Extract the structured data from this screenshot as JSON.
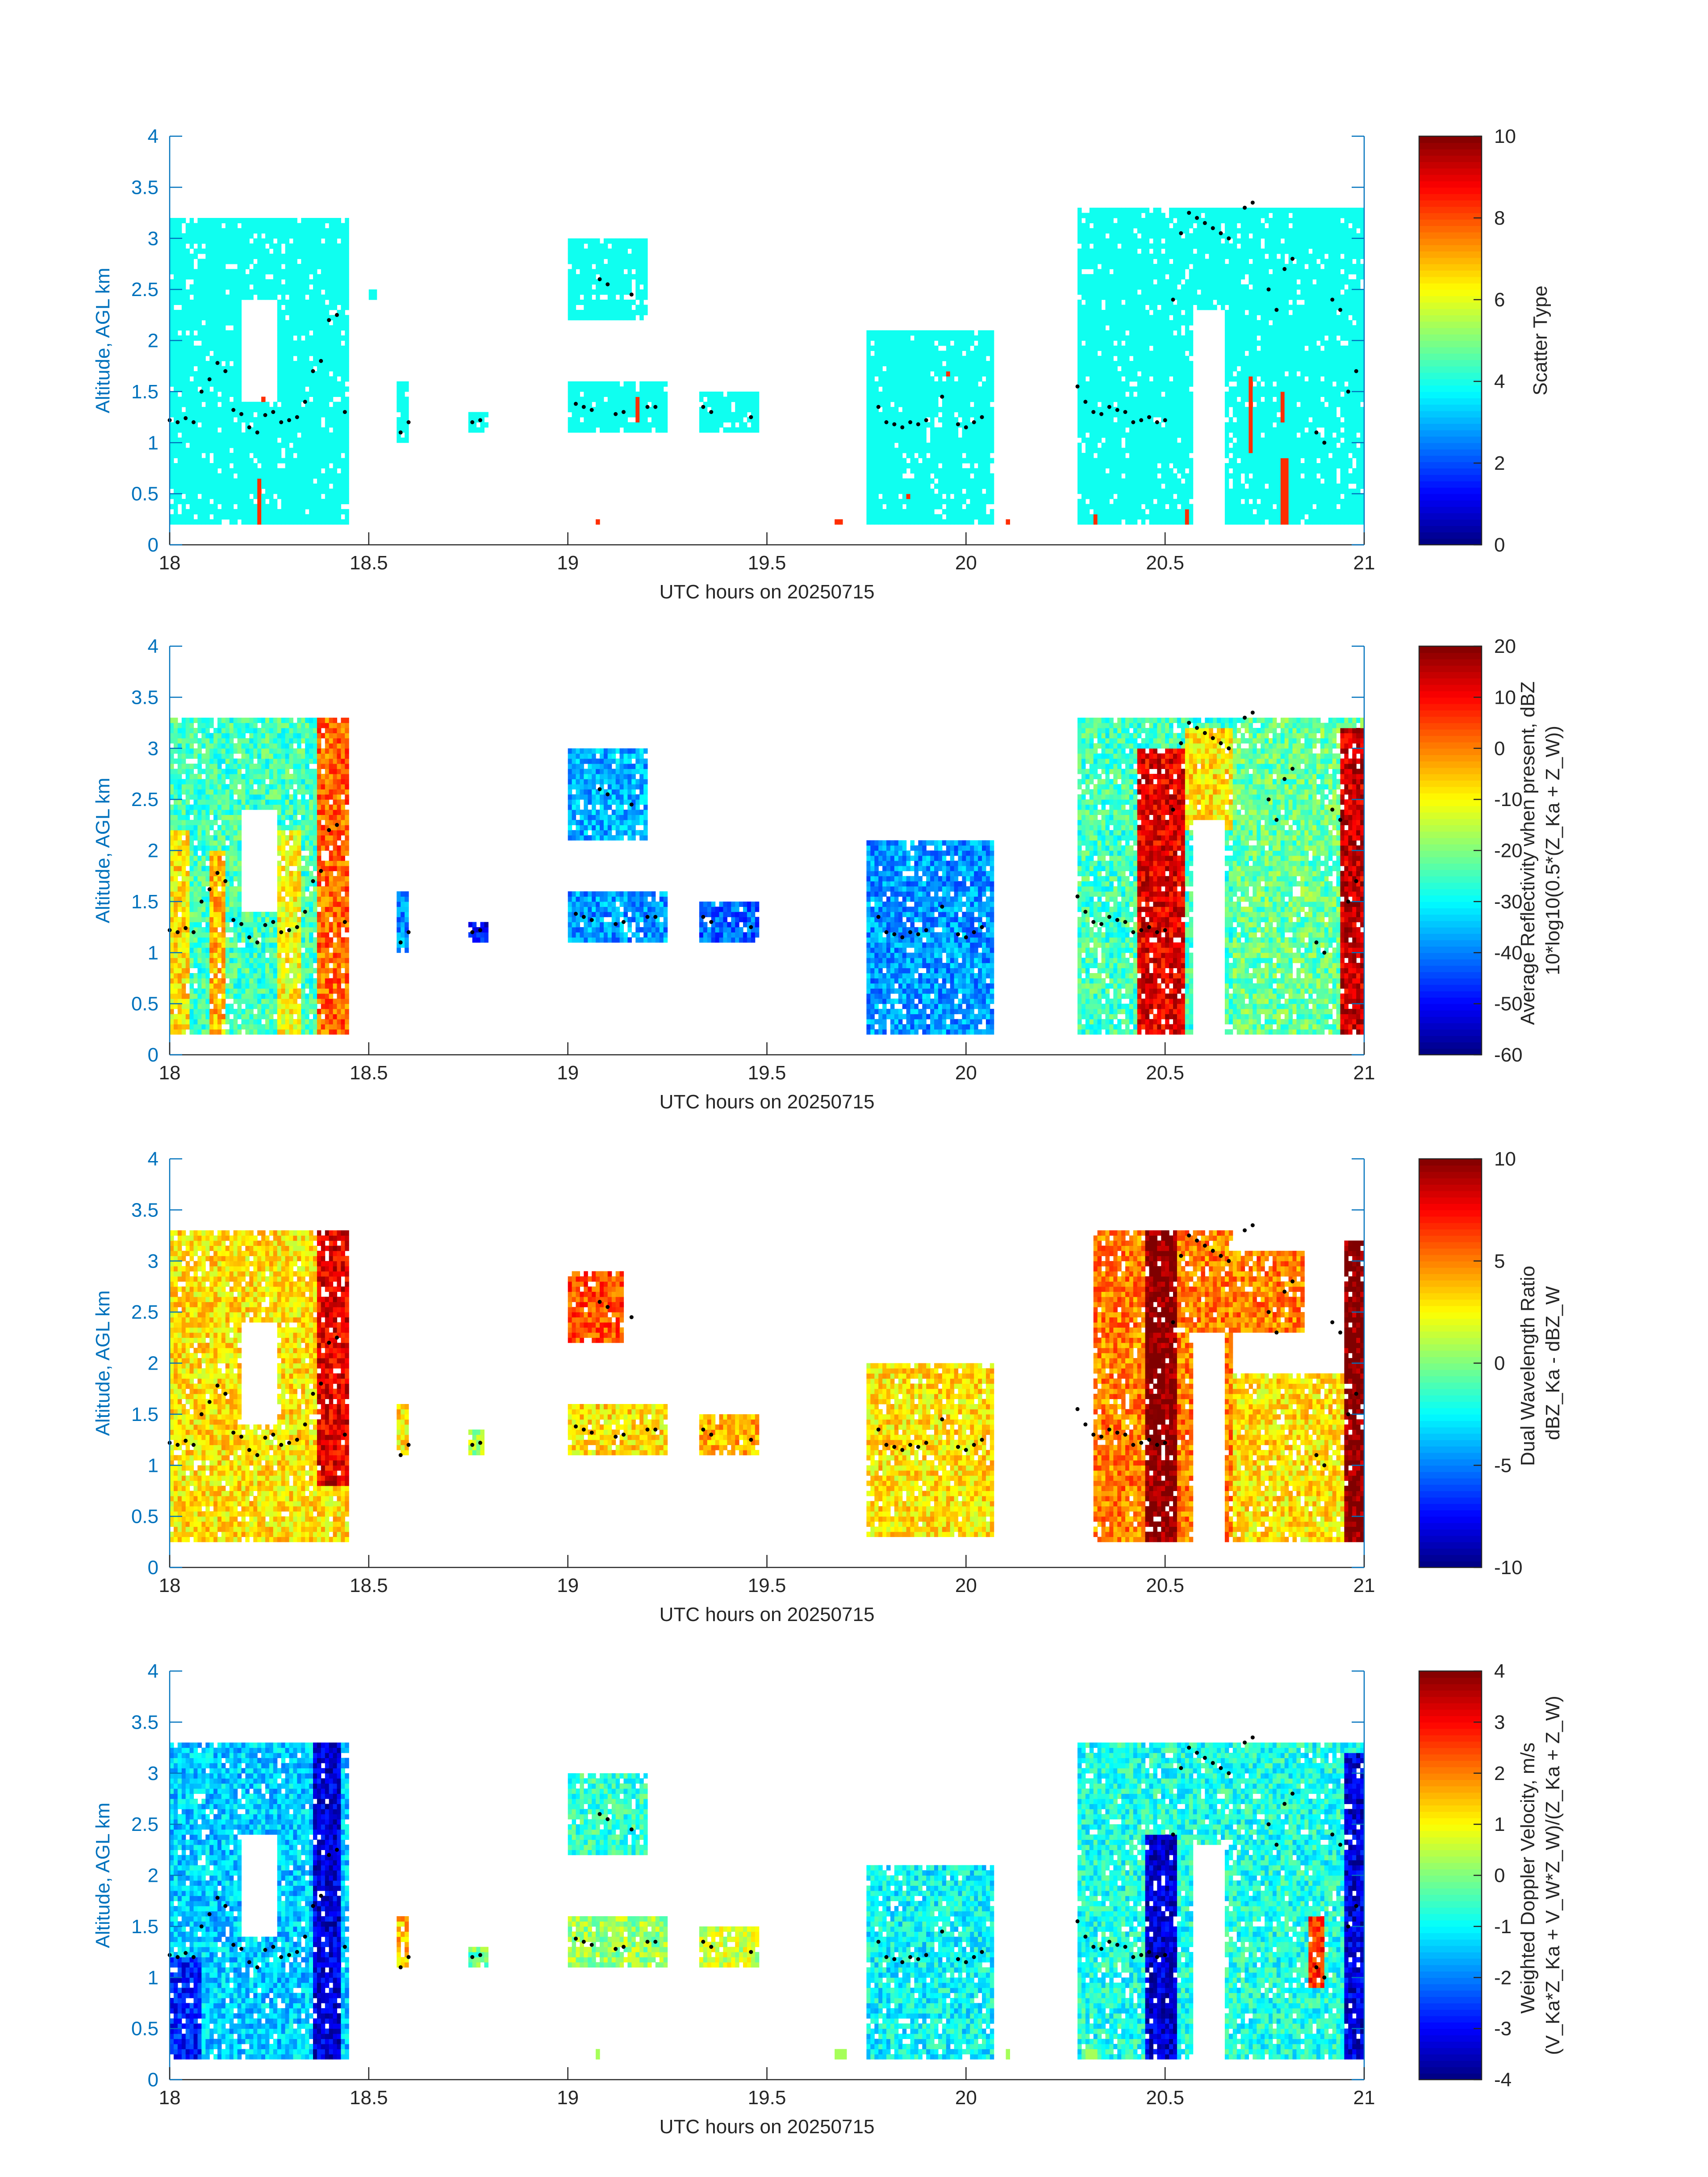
{
  "chart_data": [
    {
      "type": "heatmap",
      "xlabel": "UTC hours on 20250715",
      "ylabel": "Altitude, AGL km",
      "xlim": [
        18,
        21
      ],
      "ylim": [
        0,
        4
      ],
      "xticks": [
        "18",
        "18.5",
        "19",
        "19.5",
        "20",
        "20.5",
        "21"
      ],
      "yticks": [
        "0",
        "0.5",
        "1",
        "1.5",
        "2",
        "2.5",
        "3",
        "3.5",
        "4"
      ],
      "colorbar": {
        "label_lines": [
          "Scatter Type"
        ],
        "ticks": [
          "0",
          "2",
          "4",
          "6",
          "8",
          "10"
        ],
        "range": [
          0,
          10
        ]
      },
      "colormap": "jet",
      "default_value": 3.9,
      "echoes": [
        {
          "x": [
            18.0,
            18.45
          ],
          "y": [
            0.2,
            3.2
          ],
          "v": 3.9
        },
        {
          "x": [
            18.5,
            18.52
          ],
          "y": [
            2.4,
            2.5
          ],
          "v": 3.9
        },
        {
          "x": [
            18.57,
            18.6
          ],
          "y": [
            1.0,
            1.6
          ],
          "v": 3.9
        },
        {
          "x": [
            18.75,
            18.8
          ],
          "y": [
            1.1,
            1.3
          ],
          "v": 3.9
        },
        {
          "x": [
            19.0,
            19.2
          ],
          "y": [
            2.2,
            3.0
          ],
          "v": 3.9
        },
        {
          "x": [
            19.0,
            19.25
          ],
          "y": [
            1.1,
            1.6
          ],
          "v": 3.9
        },
        {
          "x": [
            19.33,
            19.48
          ],
          "y": [
            1.1,
            1.5
          ],
          "v": 3.9
        },
        {
          "x": [
            19.75,
            20.07
          ],
          "y": [
            0.2,
            2.1
          ],
          "v": 3.9
        },
        {
          "x": [
            20.28,
            20.67
          ],
          "y": [
            0.2,
            3.3
          ],
          "v": 3.9
        },
        {
          "x": [
            20.67,
            21.0
          ],
          "y": [
            0.2,
            3.3
          ],
          "v": 3.9
        }
      ],
      "specials": [
        {
          "x": [
            18.22,
            18.235
          ],
          "y": [
            0.2,
            0.65
          ],
          "v": 8.3
        },
        {
          "x": [
            18.23,
            18.245
          ],
          "y": [
            1.4,
            1.45
          ],
          "v": 8.3
        },
        {
          "x": [
            19.07,
            19.085
          ],
          "y": [
            0.2,
            0.25
          ],
          "v": 8.3
        },
        {
          "x": [
            19.17,
            19.185
          ],
          "y": [
            1.2,
            1.45
          ],
          "v": 8.3
        },
        {
          "x": [
            19.67,
            19.69
          ],
          "y": [
            0.2,
            0.27
          ],
          "v": 8.3
        },
        {
          "x": [
            19.85,
            19.86
          ],
          "y": [
            0.45,
            0.52
          ],
          "v": 8.3
        },
        {
          "x": [
            19.95,
            19.96
          ],
          "y": [
            1.65,
            1.72
          ],
          "v": 8.3
        },
        {
          "x": [
            20.1,
            20.115
          ],
          "y": [
            0.2,
            0.25
          ],
          "v": 8.3
        },
        {
          "x": [
            20.32,
            20.335
          ],
          "y": [
            0.2,
            0.3
          ],
          "v": 8.3
        },
        {
          "x": [
            20.55,
            20.565
          ],
          "y": [
            0.2,
            0.35
          ],
          "v": 8.3
        },
        {
          "x": [
            20.71,
            20.725
          ],
          "y": [
            0.9,
            1.65
          ],
          "v": 8.3
        },
        {
          "x": [
            20.795,
            20.81
          ],
          "y": [
            0.2,
            0.85
          ],
          "v": 8.3
        },
        {
          "x": [
            20.79,
            20.805
          ],
          "y": [
            1.2,
            1.5
          ],
          "v": 8.3
        }
      ],
      "holes": [
        {
          "x": [
            18.18,
            18.27
          ],
          "y": [
            1.4,
            2.4
          ]
        },
        {
          "x": [
            20.57,
            20.65
          ],
          "y": [
            0.2,
            2.3
          ]
        }
      ]
    },
    {
      "type": "heatmap",
      "xlabel": "UTC hours on 20250715",
      "ylabel": "Altitude, AGL km",
      "xlim": [
        18,
        21
      ],
      "ylim": [
        0,
        4
      ],
      "xticks": [
        "18",
        "18.5",
        "19",
        "19.5",
        "20",
        "20.5",
        "21"
      ],
      "yticks": [
        "0",
        "0.5",
        "1",
        "1.5",
        "2",
        "2.5",
        "3",
        "3.5",
        "4"
      ],
      "colorbar": {
        "label_lines": [
          "Average Reflectivity when present, dBZ",
          "10*log10(0.5*(Z_Ka + Z_W))"
        ],
        "ticks": [
          "-60",
          "-50",
          "-40",
          "-30",
          "-20",
          "-10",
          "0",
          "10",
          "20"
        ],
        "range": [
          -60,
          20
        ]
      },
      "colormap": "jet",
      "default_value": -35,
      "echoes": [
        {
          "x": [
            18.0,
            18.45
          ],
          "y": [
            0.2,
            3.3
          ],
          "v": -25
        },
        {
          "x": [
            18.37,
            18.45
          ],
          "y": [
            0.2,
            3.3
          ],
          "v": 2
        },
        {
          "x": [
            18.0,
            18.05
          ],
          "y": [
            0.2,
            2.2
          ],
          "v": -8
        },
        {
          "x": [
            18.1,
            18.14
          ],
          "y": [
            0.2,
            2.0
          ],
          "v": -5
        },
        {
          "x": [
            18.27,
            18.33
          ],
          "y": [
            0.2,
            2.2
          ],
          "v": -10
        },
        {
          "x": [
            18.57,
            18.6
          ],
          "y": [
            1.0,
            1.6
          ],
          "v": -38
        },
        {
          "x": [
            18.75,
            18.8
          ],
          "y": [
            1.1,
            1.3
          ],
          "v": -50
        },
        {
          "x": [
            19.0,
            19.2
          ],
          "y": [
            2.1,
            3.0
          ],
          "v": -36
        },
        {
          "x": [
            19.0,
            19.25
          ],
          "y": [
            1.1,
            1.6
          ],
          "v": -38
        },
        {
          "x": [
            19.33,
            19.48
          ],
          "y": [
            1.1,
            1.5
          ],
          "v": -42
        },
        {
          "x": [
            19.75,
            20.07
          ],
          "y": [
            0.2,
            2.1
          ],
          "v": -38
        },
        {
          "x": [
            20.28,
            20.67
          ],
          "y": [
            0.2,
            3.3
          ],
          "v": -25
        },
        {
          "x": [
            20.43,
            20.55
          ],
          "y": [
            0.2,
            3.0
          ],
          "v": 12
        },
        {
          "x": [
            20.55,
            20.85
          ],
          "y": [
            2.2,
            3.2
          ],
          "v": -8
        },
        {
          "x": [
            20.67,
            21.0
          ],
          "y": [
            0.2,
            3.3
          ],
          "v": -22
        },
        {
          "x": [
            20.94,
            21.0
          ],
          "y": [
            0.2,
            3.2
          ],
          "v": 14
        }
      ],
      "specials": [],
      "holes": [
        {
          "x": [
            18.18,
            18.27
          ],
          "y": [
            1.4,
            2.4
          ]
        },
        {
          "x": [
            20.57,
            20.65
          ],
          "y": [
            0.2,
            2.3
          ]
        }
      ]
    },
    {
      "type": "heatmap",
      "xlabel": "UTC hours on 20250715",
      "ylabel": "Altitude, AGL km",
      "xlim": [
        18,
        21
      ],
      "ylim": [
        0,
        4
      ],
      "xticks": [
        "18",
        "18.5",
        "19",
        "19.5",
        "20",
        "20.5",
        "21"
      ],
      "yticks": [
        "0",
        "0.5",
        "1",
        "1.5",
        "2",
        "2.5",
        "3",
        "3.5",
        "4"
      ],
      "colorbar": {
        "label_lines": [
          "Dual Wavelength Ratio",
          "dBZ_Ka - dBZ_W"
        ],
        "ticks": [
          "-10",
          "-5",
          "0",
          "5",
          "10"
        ],
        "range": [
          -10,
          10
        ]
      },
      "colormap": "jet",
      "default_value": 3,
      "echoes": [
        {
          "x": [
            18.0,
            18.45
          ],
          "y": [
            0.25,
            3.3
          ],
          "v": 3
        },
        {
          "x": [
            18.37,
            18.45
          ],
          "y": [
            0.8,
            3.3
          ],
          "v": 8
        },
        {
          "x": [
            18.57,
            18.6
          ],
          "y": [
            1.1,
            1.6
          ],
          "v": 3
        },
        {
          "x": [
            18.75,
            18.79
          ],
          "y": [
            1.1,
            1.35
          ],
          "v": 1
        },
        {
          "x": [
            19.0,
            19.14
          ],
          "y": [
            2.2,
            2.9
          ],
          "v": 6
        },
        {
          "x": [
            19.0,
            19.25
          ],
          "y": [
            1.1,
            1.6
          ],
          "v": 3
        },
        {
          "x": [
            19.33,
            19.48
          ],
          "y": [
            1.1,
            1.5
          ],
          "v": 4
        },
        {
          "x": [
            19.75,
            20.07
          ],
          "y": [
            0.3,
            2.0
          ],
          "v": 3
        },
        {
          "x": [
            20.32,
            20.67
          ],
          "y": [
            0.25,
            3.3
          ],
          "v": 5
        },
        {
          "x": [
            20.45,
            20.53
          ],
          "y": [
            0.25,
            3.3
          ],
          "v": 10
        },
        {
          "x": [
            20.6,
            20.85
          ],
          "y": [
            2.3,
            3.1
          ],
          "v": 5
        },
        {
          "x": [
            20.67,
            20.95
          ],
          "y": [
            0.25,
            1.9
          ],
          "v": 3
        },
        {
          "x": [
            20.95,
            21.0
          ],
          "y": [
            0.25,
            3.2
          ],
          "v": 10
        }
      ],
      "specials": [],
      "holes": [
        {
          "x": [
            18.18,
            18.27
          ],
          "y": [
            1.4,
            2.4
          ]
        },
        {
          "x": [
            20.57,
            20.65
          ],
          "y": [
            0.25,
            2.3
          ]
        }
      ]
    },
    {
      "type": "heatmap",
      "xlabel": "UTC hours on 20250715",
      "ylabel": "Altitude, AGL km",
      "xlim": [
        18,
        21
      ],
      "ylim": [
        0,
        4
      ],
      "xticks": [
        "18",
        "18.5",
        "19",
        "19.5",
        "20",
        "20.5",
        "21"
      ],
      "yticks": [
        "0",
        "0.5",
        "1",
        "1.5",
        "2",
        "2.5",
        "3",
        "3.5",
        "4"
      ],
      "colorbar": {
        "label_lines": [
          "Weighted Doppler Velocity, m/s",
          "(V_Ka*Z_Ka + V_W*Z_W)/(Z_Ka + Z_W)"
        ],
        "ticks": [
          "-4",
          "-3",
          "-2",
          "-1",
          "0",
          "1",
          "2",
          "3",
          "4"
        ],
        "range": [
          -4,
          4
        ]
      },
      "colormap": "jet",
      "default_value": -0.8,
      "echoes": [
        {
          "x": [
            18.0,
            18.45
          ],
          "y": [
            0.2,
            3.3
          ],
          "v": -1.4
        },
        {
          "x": [
            18.36,
            18.43
          ],
          "y": [
            0.2,
            3.3
          ],
          "v": -3.3
        },
        {
          "x": [
            18.0,
            18.08
          ],
          "y": [
            0.2,
            1.2
          ],
          "v": -2.8
        },
        {
          "x": [
            18.57,
            18.6
          ],
          "y": [
            1.1,
            1.6
          ],
          "v": 1.5
        },
        {
          "x": [
            18.75,
            18.8
          ],
          "y": [
            1.1,
            1.3
          ],
          "v": -0.2
        },
        {
          "x": [
            19.0,
            19.2
          ],
          "y": [
            2.2,
            3.0
          ],
          "v": -0.6
        },
        {
          "x": [
            19.0,
            19.25
          ],
          "y": [
            1.1,
            1.6
          ],
          "v": 0.2
        },
        {
          "x": [
            19.33,
            19.48
          ],
          "y": [
            1.1,
            1.5
          ],
          "v": 0.6
        },
        {
          "x": [
            19.75,
            20.07
          ],
          "y": [
            0.2,
            2.1
          ],
          "v": -1.0
        },
        {
          "x": [
            20.28,
            20.67
          ],
          "y": [
            0.2,
            3.3
          ],
          "v": -0.8
        },
        {
          "x": [
            20.45,
            20.53
          ],
          "y": [
            0.2,
            2.4
          ],
          "v": -3.4
        },
        {
          "x": [
            20.67,
            21.0
          ],
          "y": [
            0.2,
            3.3
          ],
          "v": -0.8
        },
        {
          "x": [
            20.86,
            20.9
          ],
          "y": [
            0.9,
            1.6
          ],
          "v": 2.6
        },
        {
          "x": [
            20.95,
            21.0
          ],
          "y": [
            0.2,
            3.2
          ],
          "v": -3.3
        }
      ],
      "specials": [
        {
          "x": [
            19.07,
            19.085
          ],
          "y": [
            0.2,
            0.28
          ],
          "v": 0.3
        },
        {
          "x": [
            19.67,
            19.7
          ],
          "y": [
            0.2,
            0.28
          ],
          "v": 0.3
        },
        {
          "x": [
            20.1,
            20.115
          ],
          "y": [
            0.2,
            0.28
          ],
          "v": 0.3
        },
        {
          "x": [
            20.3,
            20.33
          ],
          "y": [
            0.2,
            0.28
          ],
          "v": 0.3
        }
      ],
      "holes": [
        {
          "x": [
            18.18,
            18.27
          ],
          "y": [
            1.4,
            2.4
          ]
        },
        {
          "x": [
            20.57,
            20.65
          ],
          "y": [
            0.2,
            2.3
          ]
        }
      ]
    }
  ],
  "cloud_base_points": [
    [
      18.0,
      1.22
    ],
    [
      18.02,
      1.2
    ],
    [
      18.04,
      1.24
    ],
    [
      18.06,
      1.2
    ],
    [
      18.08,
      1.5
    ],
    [
      18.1,
      1.62
    ],
    [
      18.12,
      1.78
    ],
    [
      18.14,
      1.7
    ],
    [
      18.16,
      1.32
    ],
    [
      18.18,
      1.28
    ],
    [
      18.2,
      1.15
    ],
    [
      18.22,
      1.1
    ],
    [
      18.24,
      1.27
    ],
    [
      18.26,
      1.3
    ],
    [
      18.28,
      1.2
    ],
    [
      18.3,
      1.22
    ],
    [
      18.32,
      1.25
    ],
    [
      18.34,
      1.4
    ],
    [
      18.36,
      1.7
    ],
    [
      18.38,
      1.8
    ],
    [
      18.4,
      2.2
    ],
    [
      18.42,
      2.25
    ],
    [
      18.44,
      1.3
    ],
    [
      18.58,
      1.1
    ],
    [
      18.6,
      1.2
    ],
    [
      18.76,
      1.2
    ],
    [
      18.78,
      1.22
    ],
    [
      19.02,
      1.38
    ],
    [
      19.04,
      1.35
    ],
    [
      19.06,
      1.32
    ],
    [
      19.08,
      2.6
    ],
    [
      19.1,
      2.55
    ],
    [
      19.12,
      1.28
    ],
    [
      19.14,
      1.3
    ],
    [
      19.16,
      2.45
    ],
    [
      19.2,
      1.35
    ],
    [
      19.22,
      1.35
    ],
    [
      19.34,
      1.35
    ],
    [
      19.36,
      1.3
    ],
    [
      19.46,
      1.25
    ],
    [
      19.78,
      1.35
    ],
    [
      19.8,
      1.2
    ],
    [
      19.82,
      1.18
    ],
    [
      19.84,
      1.15
    ],
    [
      19.86,
      1.2
    ],
    [
      19.88,
      1.18
    ],
    [
      19.9,
      1.22
    ],
    [
      19.94,
      1.45
    ],
    [
      19.98,
      1.18
    ],
    [
      20.0,
      1.15
    ],
    [
      20.02,
      1.2
    ],
    [
      20.04,
      1.25
    ],
    [
      20.28,
      1.55
    ],
    [
      20.3,
      1.4
    ],
    [
      20.32,
      1.3
    ],
    [
      20.34,
      1.28
    ],
    [
      20.36,
      1.35
    ],
    [
      20.38,
      1.32
    ],
    [
      20.4,
      1.3
    ],
    [
      20.42,
      1.2
    ],
    [
      20.44,
      1.22
    ],
    [
      20.46,
      1.25
    ],
    [
      20.48,
      1.2
    ],
    [
      20.5,
      1.22
    ],
    [
      20.52,
      2.4
    ],
    [
      20.54,
      3.05
    ],
    [
      20.56,
      3.25
    ],
    [
      20.58,
      3.2
    ],
    [
      20.6,
      3.15
    ],
    [
      20.62,
      3.1
    ],
    [
      20.64,
      3.05
    ],
    [
      20.66,
      3.0
    ],
    [
      20.7,
      3.3
    ],
    [
      20.72,
      3.35
    ],
    [
      20.76,
      2.5
    ],
    [
      20.78,
      2.3
    ],
    [
      20.8,
      2.7
    ],
    [
      20.82,
      2.8
    ],
    [
      20.88,
      1.1
    ],
    [
      20.9,
      1.0
    ],
    [
      20.92,
      2.4
    ],
    [
      20.94,
      2.3
    ],
    [
      20.96,
      1.5
    ],
    [
      20.98,
      1.7
    ]
  ]
}
